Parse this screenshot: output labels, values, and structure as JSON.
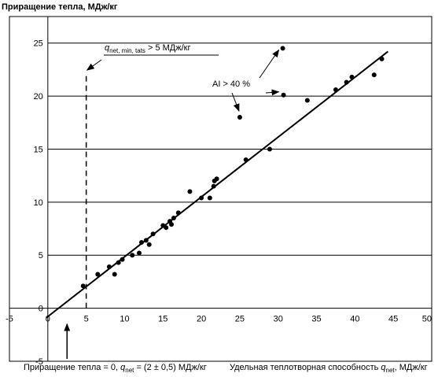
{
  "chart_data": {
    "type": "scatter",
    "ylabel": "Приращение тепла, МДж/кг",
    "xlim": [
      -5,
      50
    ],
    "ylim": [
      -5,
      27.5
    ],
    "x_ticks": [
      "-5",
      "0",
      "5",
      "10",
      "15",
      "20",
      "25",
      "30",
      "35",
      "40",
      "45",
      "50"
    ],
    "y_ticks": [
      "-5",
      "0",
      "5",
      "10",
      "15",
      "20",
      "25"
    ],
    "grid": "horizontal",
    "series": [
      {
        "points": [
          {
            "x": 4.6,
            "y": 2.1
          },
          {
            "x": 6.5,
            "y": 3.2
          },
          {
            "x": 8.0,
            "y": 3.9
          },
          {
            "x": 8.7,
            "y": 3.2
          },
          {
            "x": 9.2,
            "y": 4.3
          },
          {
            "x": 9.7,
            "y": 4.6
          },
          {
            "x": 11.0,
            "y": 5.0
          },
          {
            "x": 11.9,
            "y": 5.2
          },
          {
            "x": 12.2,
            "y": 6.2
          },
          {
            "x": 12.8,
            "y": 6.4
          },
          {
            "x": 13.2,
            "y": 6.0
          },
          {
            "x": 13.7,
            "y": 7.0
          },
          {
            "x": 15.0,
            "y": 7.8
          },
          {
            "x": 15.4,
            "y": 7.6
          },
          {
            "x": 15.9,
            "y": 8.2
          },
          {
            "x": 16.1,
            "y": 7.9
          },
          {
            "x": 16.4,
            "y": 8.5
          },
          {
            "x": 17.0,
            "y": 9.0
          },
          {
            "x": 18.5,
            "y": 11.0
          },
          {
            "x": 20.0,
            "y": 10.4
          },
          {
            "x": 21.1,
            "y": 10.4
          },
          {
            "x": 21.6,
            "y": 11.5
          },
          {
            "x": 21.7,
            "y": 12.0
          },
          {
            "x": 22.0,
            "y": 12.2
          },
          {
            "x": 25.8,
            "y": 14.0
          },
          {
            "x": 28.9,
            "y": 15.0
          },
          {
            "x": 33.8,
            "y": 19.6
          },
          {
            "x": 37.5,
            "y": 20.6
          },
          {
            "x": 38.9,
            "y": 21.3
          },
          {
            "x": 39.6,
            "y": 21.8
          },
          {
            "x": 42.5,
            "y": 22.0
          },
          {
            "x": 43.5,
            "y": 23.5
          },
          {
            "x": 25.0,
            "y": 18.0
          },
          {
            "x": 30.6,
            "y": 24.5
          },
          {
            "x": 30.7,
            "y": 20.1
          }
        ]
      }
    ],
    "regression_line": [
      {
        "x": -0.2,
        "y": -0.9
      },
      {
        "x": 44.3,
        "y": 24.2
      }
    ],
    "threshold_line": {
      "x": 5,
      "y_from": 0,
      "y_to": 22
    },
    "threshold_label": {
      "q": "q",
      "subscript": "net, min, tats",
      "tail": " > 5 МДж/кг"
    },
    "ai_label": "AI > 40 %",
    "bottom_left_note": {
      "prefix": "Приращение тепла = 0, ",
      "q": "q",
      "subscript": "net",
      "tail": " = (2 ± 0,5) МДж/кг"
    },
    "bottom_right_note": {
      "prefix": "Удельная теплотворная способность ",
      "q": "q",
      "subscript": "net",
      "tail": ", МДж/кг"
    }
  }
}
